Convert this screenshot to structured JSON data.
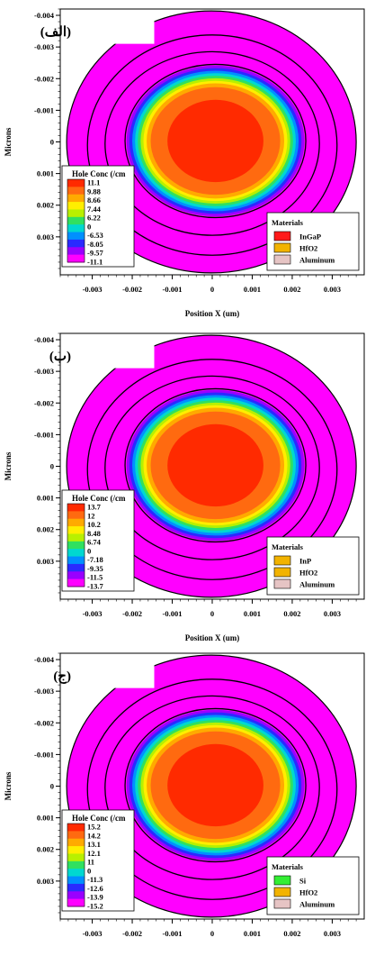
{
  "chart_data": [
    {
      "type": "heatmap",
      "panel_label": "(الف)",
      "ylabel": "Microns",
      "xlabel": "Position X (um)",
      "xlim": [
        -0.0038,
        0.0038
      ],
      "ylim": [
        -0.0042,
        0.0042
      ],
      "x_ticks": [
        "-0.003",
        "-0.002",
        "-0.001",
        "0",
        "0.001",
        "0.002",
        "0.003"
      ],
      "y_ticks": [
        "-0.004",
        "-0.003",
        "-0.002",
        "-0.001",
        "0",
        "0.001",
        "0.002",
        "0.003"
      ],
      "colorbar_title": "Hole Conc (/cm",
      "colorbar_values": [
        "11.1",
        "9.88",
        "8.66",
        "7.44",
        "6.22",
        "0",
        "-6.53",
        "-8.05",
        "-9.57",
        "-11.1"
      ],
      "legend_title": "Materials",
      "materials": [
        {
          "name": "InGaP",
          "color": "#ff1a1a"
        },
        {
          "name": "HfO2",
          "color": "#f2b300"
        },
        {
          "name": "Aluminum",
          "color": "#e6c4c4"
        }
      ]
    },
    {
      "type": "heatmap",
      "panel_label": "(ب)",
      "ylabel": "Microns",
      "xlabel": "Position X (um)",
      "xlim": [
        -0.0038,
        0.0038
      ],
      "ylim": [
        -0.0042,
        0.0042
      ],
      "x_ticks": [
        "-0.003",
        "-0.002",
        "-0.001",
        "0",
        "0.001",
        "0.002",
        "0.003"
      ],
      "y_ticks": [
        "-0.004",
        "-0.003",
        "-0.002",
        "-0.001",
        "0",
        "0.001",
        "0.002",
        "0.003"
      ],
      "colorbar_title": "Hole Conc (/cm",
      "colorbar_values": [
        "13.7",
        "12",
        "10.2",
        "8.48",
        "6.74",
        "0",
        "-7.18",
        "-9.35",
        "-11.5",
        "-13.7"
      ],
      "legend_title": "Materials",
      "materials": [
        {
          "name": "InP",
          "color": "#f2b300"
        },
        {
          "name": "HfO2",
          "color": "#f2b300"
        },
        {
          "name": "Aluminum",
          "color": "#e6c4c4"
        }
      ]
    },
    {
      "type": "heatmap",
      "panel_label": "(ج)",
      "ylabel": "Microns",
      "xlabel": "",
      "xlim": [
        -0.0038,
        0.0038
      ],
      "ylim": [
        -0.0042,
        0.0042
      ],
      "x_ticks": [
        "-0.003",
        "-0.002",
        "-0.001",
        "0",
        "0.001",
        "0.002",
        "0.003"
      ],
      "y_ticks": [
        "-0.004",
        "-0.003",
        "-0.002",
        "-0.001",
        "0",
        "0.001",
        "0.002",
        "0.003"
      ],
      "colorbar_title": "Hole Conc (/cm",
      "colorbar_values": [
        "15.2",
        "14.2",
        "13.1",
        "12.1",
        "11",
        "0",
        "-11.3",
        "-12.6",
        "-13.9",
        "-15.2"
      ],
      "legend_title": "Materials",
      "materials": [
        {
          "name": "Si",
          "color": "#33ee33"
        },
        {
          "name": "HfO2",
          "color": "#f2b300"
        },
        {
          "name": "Aluminum",
          "color": "#e6c4c4"
        }
      ]
    }
  ],
  "colorscale": [
    "#ff2a00",
    "#ff6a10",
    "#ffaa00",
    "#ffee00",
    "#b8f000",
    "#30e060",
    "#00d8d0",
    "#0090ff",
    "#2a2aff",
    "#9a00ff",
    "#ff00ff"
  ]
}
